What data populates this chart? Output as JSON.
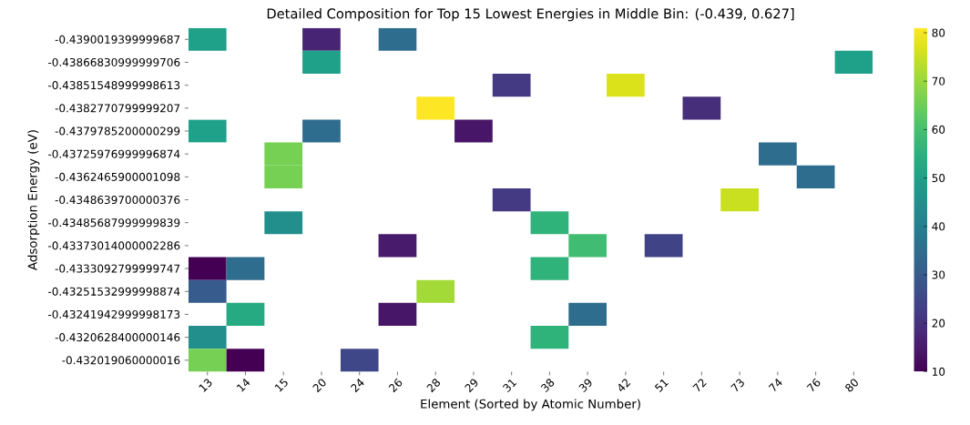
{
  "chart_data": {
    "type": "heatmap",
    "title": "Detailed Composition for Top 15 Lowest Energies in Middle Bin: (-0.439, 0.627]",
    "xlabel": "Element (Sorted by Atomic Number)",
    "ylabel": "Adsorption Energy (eV)",
    "categories": [
      "13",
      "14",
      "15",
      "20",
      "24",
      "26",
      "28",
      "29",
      "31",
      "38",
      "39",
      "42",
      "51",
      "72",
      "73",
      "74",
      "76",
      "80"
    ],
    "y_categories": [
      "-0.4390019399999687",
      "-0.43866830999999706",
      "-0.43851548999998613",
      "-0.4382770799999207",
      "-0.4379785200000299",
      "-0.43725976999996874",
      "-0.4362465900001098",
      "-0.4348639700000376",
      "-0.43485687999999839",
      "-0.43373014000002286",
      "-0.4333092799999747",
      "-0.43251532999998874",
      "-0.43241942999998173",
      "-0.4320628400000146",
      "-0.432019060000016"
    ],
    "cells": [
      [
        50,
        null,
        null,
        17,
        null,
        35,
        null,
        null,
        null,
        null,
        null,
        null,
        null,
        null,
        null,
        null,
        null,
        null
      ],
      [
        null,
        null,
        null,
        50,
        null,
        null,
        null,
        null,
        null,
        null,
        null,
        null,
        null,
        null,
        null,
        null,
        null,
        50
      ],
      [
        null,
        null,
        null,
        null,
        null,
        null,
        null,
        null,
        22,
        null,
        null,
        77,
        null,
        null,
        null,
        null,
        null,
        null
      ],
      [
        null,
        null,
        null,
        null,
        null,
        null,
        81,
        null,
        null,
        null,
        null,
        null,
        null,
        19,
        null,
        null,
        null,
        null
      ],
      [
        50,
        null,
        null,
        35,
        null,
        null,
        null,
        14,
        null,
        null,
        null,
        null,
        null,
        null,
        null,
        null,
        null,
        null
      ],
      [
        null,
        null,
        66,
        null,
        null,
        null,
        null,
        null,
        null,
        null,
        null,
        null,
        null,
        null,
        null,
        35,
        null,
        null
      ],
      [
        null,
        null,
        66,
        null,
        null,
        null,
        null,
        null,
        null,
        null,
        null,
        null,
        null,
        null,
        null,
        null,
        35,
        null
      ],
      [
        null,
        null,
        null,
        null,
        null,
        null,
        null,
        null,
        22,
        null,
        null,
        null,
        null,
        null,
        75,
        null,
        null,
        null
      ],
      [
        null,
        null,
        45,
        null,
        null,
        null,
        null,
        null,
        null,
        56,
        null,
        null,
        null,
        null,
        null,
        null,
        null,
        null
      ],
      [
        null,
        null,
        null,
        null,
        null,
        15,
        null,
        null,
        null,
        null,
        59,
        null,
        24,
        null,
        null,
        null,
        null,
        null
      ],
      [
        10,
        35,
        null,
        null,
        null,
        null,
        null,
        null,
        null,
        56,
        null,
        null,
        null,
        null,
        null,
        null,
        null,
        null
      ],
      [
        30,
        null,
        null,
        null,
        null,
        null,
        71,
        null,
        null,
        null,
        null,
        null,
        null,
        null,
        null,
        null,
        null,
        null
      ],
      [
        null,
        53,
        null,
        null,
        null,
        14,
        null,
        null,
        null,
        null,
        35,
        null,
        null,
        null,
        null,
        null,
        null,
        null
      ],
      [
        45,
        null,
        null,
        null,
        null,
        null,
        null,
        null,
        null,
        56,
        null,
        null,
        null,
        null,
        null,
        null,
        null,
        null
      ],
      [
        66,
        10,
        null,
        null,
        25,
        null,
        null,
        null,
        null,
        null,
        null,
        null,
        null,
        null,
        null,
        null,
        null,
        null
      ]
    ],
    "clim": [
      10,
      81
    ],
    "cticks": [
      10,
      20,
      30,
      40,
      50,
      60,
      70,
      80
    ]
  }
}
